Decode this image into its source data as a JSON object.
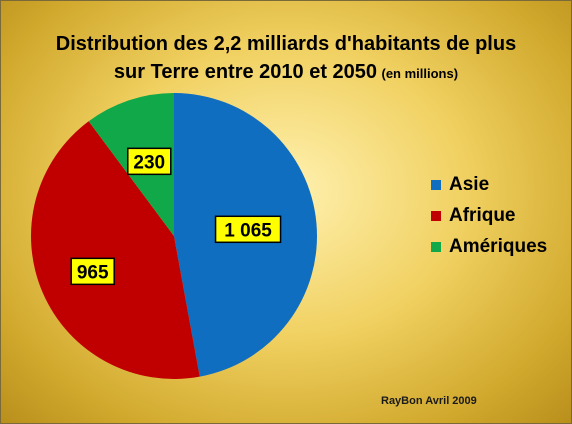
{
  "chart_data": {
    "type": "pie",
    "title": "Distribution des 2,2 milliards d'habitants de plus  sur Terre entre 2010 et 2050",
    "title_unit": "(en millions)",
    "categories": [
      "Asie",
      "Afrique",
      "Amériques"
    ],
    "values": [
      1065,
      965,
      230
    ],
    "value_labels": [
      "1 065",
      "965",
      "230"
    ],
    "colors": [
      "#0f6ec0",
      "#c00000",
      "#10a848"
    ],
    "legend_position": "right"
  },
  "credit": "RayBon Avril 2009"
}
